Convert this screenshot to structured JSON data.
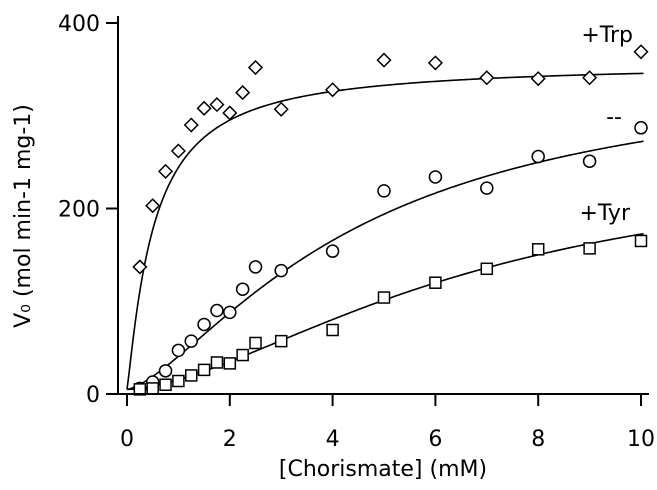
{
  "chart_data": {
    "type": "scatter",
    "title": "",
    "xlabel": "[Chorismate] (mM)",
    "ylabel": "V₀ (mol min-1 mg-1)",
    "xlim": [
      0,
      10.3
    ],
    "ylim": [
      0,
      400
    ],
    "xticks": [
      0,
      2,
      4,
      6,
      8,
      10
    ],
    "xtick_labels": [
      "0",
      "2",
      "4",
      "6",
      "8",
      "10"
    ],
    "yticks": [
      0,
      200,
      400
    ],
    "ytick_labels": [
      "0",
      "200",
      "400"
    ],
    "grid": false,
    "series": [
      {
        "name": "+Trp",
        "marker": "diamond",
        "x": [
          0.25,
          0.5,
          0.75,
          1.0,
          1.25,
          1.5,
          1.75,
          2.0,
          2.25,
          2.5,
          3.0,
          4.0,
          5.0,
          6.0,
          7.0,
          8.0,
          9.0,
          10.0
        ],
        "y": [
          137,
          203,
          240,
          262,
          290,
          308,
          312,
          303,
          325,
          352,
          307,
          328,
          360,
          357,
          341,
          340,
          341,
          369
        ],
        "fit": {
          "model": "hill",
          "vmax": 357,
          "k": 0.52,
          "n": 1.15
        }
      },
      {
        "name": "--",
        "marker": "circle",
        "x": [
          0.25,
          0.5,
          0.75,
          1.0,
          1.25,
          1.5,
          1.75,
          2.0,
          2.25,
          2.5,
          3.0,
          4.0,
          5.0,
          6.0,
          7.0,
          8.0,
          9.0,
          10.0
        ],
        "y": [
          6,
          13,
          25,
          47,
          57,
          75,
          90,
          88,
          113,
          137,
          133,
          154,
          219,
          234,
          222,
          256,
          251,
          287
        ],
        "fit": {
          "model": "hill",
          "vmax": 356,
          "k": 4.5,
          "n": 1.45
        }
      },
      {
        "name": "+Tyr",
        "marker": "square",
        "x": [
          0.25,
          0.5,
          0.75,
          1.0,
          1.25,
          1.5,
          1.75,
          2.0,
          2.25,
          2.5,
          3.0,
          4.0,
          5.0,
          6.0,
          7.0,
          8.0,
          9.0,
          10.0
        ],
        "y": [
          5,
          6,
          10,
          14,
          20,
          26,
          34,
          33,
          42,
          55,
          57,
          69,
          104,
          120,
          135,
          156,
          157,
          165
        ],
        "fit": {
          "model": "hill",
          "vmax": 261,
          "k": 6.8,
          "n": 1.65
        }
      }
    ]
  }
}
